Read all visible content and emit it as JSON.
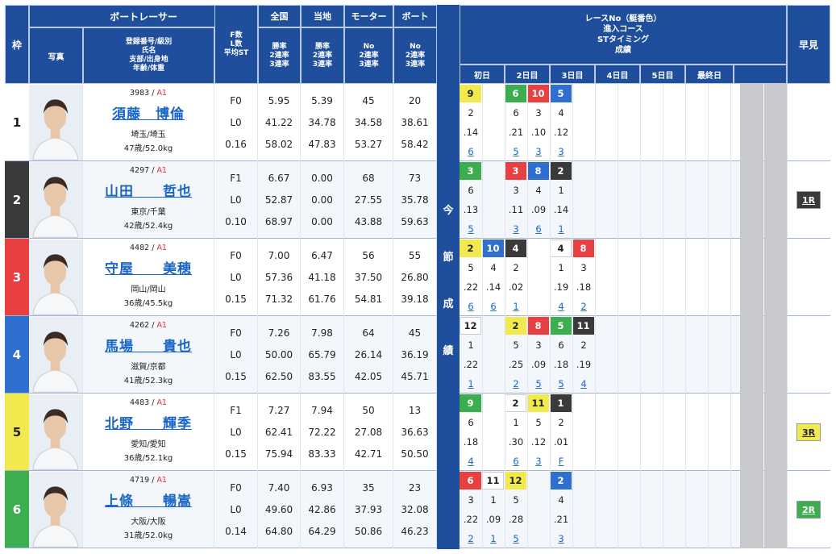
{
  "header": {
    "waku": "枠",
    "boat_racer": "ボートレーサー",
    "photo": "写真",
    "racer_info": [
      "登録番号/級別",
      "氏名",
      "支部/出身地",
      "年齢/体重"
    ],
    "fl": [
      "F数",
      "L数",
      "平均ST"
    ],
    "zenkoku": "全国",
    "touchi": "当地",
    "motor": "モーター",
    "boat": "ボート",
    "rate_rows": [
      "勝率",
      "2連率",
      "3連率"
    ],
    "no_rows": [
      "No",
      "2連率",
      "3連率"
    ],
    "race_info": [
      "レースNo（艇番色）",
      "進入コース",
      "STタイミング",
      "成績"
    ],
    "days": [
      "初日",
      "2日目",
      "3日目",
      "4日目",
      "5日目",
      "最終日"
    ],
    "hayami": "早見",
    "konsetsu": [
      "今",
      "節",
      "成",
      "績"
    ]
  },
  "colors": {
    "header_bg": "#1e4e9c",
    "waku_bg": [
      "#ffffff",
      "#3a3a3a",
      "#e84040",
      "#2f6fd0",
      "#f2e94e",
      "#3cae50"
    ],
    "waku_fg": [
      "#222222",
      "#ffffff",
      "#ffffff",
      "#ffffff",
      "#222222",
      "#ffffff"
    ]
  },
  "racers": [
    {
      "waku": "1",
      "reg": "3983",
      "cls": "A1",
      "name": "須藤　博倫",
      "branch": "埼玉/埼玉",
      "age_weight": "47歳/52.0kg",
      "fl": [
        "F0",
        "L0",
        "0.16"
      ],
      "zenkoku": [
        "5.95",
        "41.22",
        "58.02"
      ],
      "touchi": [
        "5.39",
        "34.78",
        "47.83"
      ],
      "motor": [
        "45",
        "34.58",
        "53.27"
      ],
      "boat": [
        "20",
        "38.61",
        "58.42"
      ],
      "races": [
        {
          "no": "9",
          "c": 4,
          "course": "2",
          "st": ".14",
          "res": "6"
        },
        null,
        {
          "no": "6",
          "c": 5,
          "course": "6",
          "st": ".21",
          "res": "5"
        },
        {
          "no": "10",
          "c": 2,
          "course": "3",
          "st": ".10",
          "res": "3"
        },
        {
          "no": "5",
          "c": 3,
          "course": "4",
          "st": ".12",
          "res": "3"
        }
      ],
      "hayami": ""
    },
    {
      "waku": "2",
      "reg": "4297",
      "cls": "A1",
      "name": "山田　　哲也",
      "branch": "東京/千葉",
      "age_weight": "42歳/52.4kg",
      "fl": [
        "F1",
        "L0",
        "0.10"
      ],
      "zenkoku": [
        "6.67",
        "52.87",
        "68.97"
      ],
      "touchi": [
        "0.00",
        "0.00",
        "0.00"
      ],
      "motor": [
        "68",
        "27.55",
        "43.88"
      ],
      "boat": [
        "73",
        "35.78",
        "59.63"
      ],
      "races": [
        {
          "no": "3",
          "c": 5,
          "course": "6",
          "st": ".13",
          "res": "5"
        },
        null,
        {
          "no": "3",
          "c": 2,
          "course": "3",
          "st": ".11",
          "res": "3"
        },
        {
          "no": "8",
          "c": 3,
          "course": "4",
          "st": ".09",
          "res": "6"
        },
        {
          "no": "2",
          "c": 1,
          "course": "1",
          "st": ".14",
          "res": "1"
        }
      ],
      "hayami": "1R"
    },
    {
      "waku": "3",
      "reg": "4482",
      "cls": "A1",
      "name": "守屋　　美穂",
      "branch": "岡山/岡山",
      "age_weight": "36歳/45.5kg",
      "fl": [
        "F0",
        "L0",
        "0.15"
      ],
      "zenkoku": [
        "7.00",
        "57.36",
        "71.32"
      ],
      "touchi": [
        "6.47",
        "41.18",
        "61.76"
      ],
      "motor": [
        "56",
        "37.50",
        "54.81"
      ],
      "boat": [
        "55",
        "26.80",
        "39.18"
      ],
      "races": [
        {
          "no": "2",
          "c": 4,
          "course": "5",
          "st": ".22",
          "res": "6"
        },
        {
          "no": "10",
          "c": 3,
          "course": "4",
          "st": ".14",
          "res": "6"
        },
        {
          "no": "4",
          "c": 1,
          "course": "2",
          "st": ".02",
          "res": "1"
        },
        null,
        {
          "no": "4",
          "c": 0,
          "course": "1",
          "st": ".19",
          "res": "4"
        },
        {
          "no": "8",
          "c": 2,
          "course": "3",
          "st": ".18",
          "res": "2"
        }
      ],
      "hayami": ""
    },
    {
      "waku": "4",
      "reg": "4262",
      "cls": "A1",
      "name": "馬場　　貴也",
      "branch": "滋賀/京都",
      "age_weight": "41歳/52.3kg",
      "fl": [
        "F0",
        "L0",
        "0.15"
      ],
      "zenkoku": [
        "7.26",
        "50.00",
        "62.50"
      ],
      "touchi": [
        "7.98",
        "65.79",
        "83.55"
      ],
      "motor": [
        "64",
        "26.14",
        "42.05"
      ],
      "boat": [
        "45",
        "36.19",
        "45.71"
      ],
      "races": [
        {
          "no": "12",
          "c": 0,
          "course": "1",
          "st": ".22",
          "res": "1"
        },
        null,
        {
          "no": "2",
          "c": 4,
          "course": "5",
          "st": ".25",
          "res": "2"
        },
        {
          "no": "8",
          "c": 2,
          "course": "3",
          "st": ".09",
          "res": "5"
        },
        {
          "no": "5",
          "c": 5,
          "course": "6",
          "st": ".18",
          "res": "5"
        },
        {
          "no": "11",
          "c": 1,
          "course": "2",
          "st": ".19",
          "res": "4"
        }
      ],
      "hayami": ""
    },
    {
      "waku": "5",
      "reg": "4483",
      "cls": "A1",
      "name": "北野　　輝季",
      "branch": "愛知/愛知",
      "age_weight": "36歳/52.1kg",
      "fl": [
        "F1",
        "L0",
        "0.15"
      ],
      "zenkoku": [
        "7.27",
        "62.41",
        "75.94"
      ],
      "touchi": [
        "7.94",
        "72.22",
        "83.33"
      ],
      "motor": [
        "50",
        "27.08",
        "42.71"
      ],
      "boat": [
        "13",
        "36.63",
        "50.50"
      ],
      "races": [
        {
          "no": "9",
          "c": 5,
          "course": "6",
          "st": ".18",
          "res": "4"
        },
        null,
        {
          "no": "2",
          "c": 0,
          "course": "1",
          "st": ".30",
          "res": "6"
        },
        {
          "no": "11",
          "c": 4,
          "course": "5",
          "st": ".12",
          "res": "3"
        },
        {
          "no": "1",
          "c": 1,
          "course": "2",
          "st": ".01",
          "res": "F"
        }
      ],
      "hayami": "3R"
    },
    {
      "waku": "6",
      "reg": "4719",
      "cls": "A1",
      "name": "上條　　暢嵩",
      "branch": "大阪/大阪",
      "age_weight": "31歳/52.0kg",
      "fl": [
        "F0",
        "L0",
        "0.14"
      ],
      "zenkoku": [
        "7.40",
        "49.60",
        "64.80"
      ],
      "touchi": [
        "6.93",
        "42.86",
        "64.29"
      ],
      "motor": [
        "35",
        "37.93",
        "50.86"
      ],
      "boat": [
        "23",
        "32.08",
        "46.23"
      ],
      "races": [
        {
          "no": "6",
          "c": 2,
          "course": "3",
          "st": ".22",
          "res": "2"
        },
        {
          "no": "11",
          "c": 0,
          "course": "1",
          "st": ".09",
          "res": "1"
        },
        {
          "no": "12",
          "c": 4,
          "course": "5",
          "st": ".28",
          "res": "5"
        },
        null,
        {
          "no": "2",
          "c": 3,
          "course": "4",
          "st": ".21",
          "res": "3"
        }
      ],
      "hayami": "2R"
    }
  ]
}
